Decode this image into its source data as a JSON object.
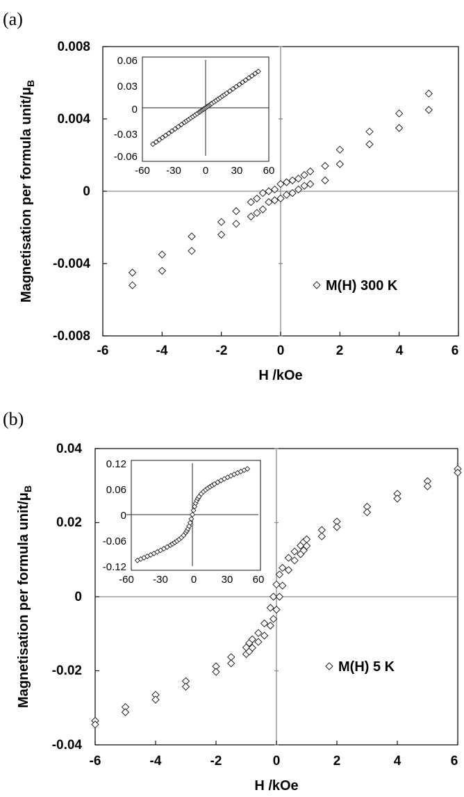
{
  "figure": {
    "panels": [
      {
        "label": "(a)"
      },
      {
        "label": "(b)"
      }
    ]
  },
  "chart_data": [
    {
      "type": "scatter",
      "panel": "(a)",
      "xlabel": "H /kOe",
      "ylabel": "Magnetisation per formula unit/",
      "ylabel_symbol": "μ",
      "ylabel_sub": "B",
      "xlim": [
        -6,
        6
      ],
      "ylim": [
        -0.008,
        0.008
      ],
      "xticks": [
        "-6",
        "-4",
        "-2",
        "0",
        "2",
        "4",
        "6"
      ],
      "yticks": [
        "-0.008",
        "-0.004",
        "0",
        "0.004",
        "0.008"
      ],
      "grid": false,
      "legend_position": "lower-right",
      "series": [
        {
          "name": "M(H) 300 K",
          "marker": "diamond",
          "x": [
            -5,
            -5,
            -4,
            -4,
            -3,
            -3,
            -2,
            -2,
            -1.5,
            -1.5,
            -1,
            -1,
            -0.8,
            -0.8,
            -0.6,
            -0.6,
            -0.4,
            -0.4,
            -0.2,
            -0.2,
            0,
            0,
            0.2,
            0.2,
            0.4,
            0.4,
            0.6,
            0.6,
            0.8,
            0.8,
            1,
            1,
            1.5,
            1.5,
            2,
            2,
            3,
            3,
            4,
            4,
            5,
            5
          ],
          "y": [
            -0.0045,
            -0.0052,
            -0.0035,
            -0.0044,
            -0.0025,
            -0.0033,
            -0.0017,
            -0.0024,
            -0.0011,
            -0.0018,
            -0.0006,
            -0.0014,
            -0.0004,
            -0.0012,
            -0.0001,
            -0.001,
            0.0,
            -0.0006,
            0.0001,
            -0.0005,
            0.0004,
            -0.0004,
            0.0005,
            -0.0002,
            0.0006,
            -0.0001,
            0.0007,
            0.0001,
            0.0009,
            0.0003,
            0.0011,
            0.0004,
            0.0014,
            0.0006,
            0.0023,
            0.0015,
            0.0033,
            0.0026,
            0.0043,
            0.0035,
            0.0054,
            0.0045
          ]
        }
      ],
      "inset": {
        "xlim": [
          -60,
          60
        ],
        "ylim": [
          -0.06,
          0.06
        ],
        "xticks": [
          "-60",
          "-30",
          "0",
          "30",
          "60"
        ],
        "yticks": [
          "-0.06",
          "-0.03",
          "0",
          "0.03",
          "0.06"
        ],
        "x": [
          -50,
          -47,
          -44,
          -41,
          -38,
          -35,
          -32,
          -29,
          -26,
          -23,
          -20,
          -18,
          -16,
          -14,
          -12,
          -10,
          -8,
          -6,
          -5,
          -4,
          -3,
          -2,
          -1,
          0,
          1,
          2,
          3,
          4,
          5,
          6,
          8,
          10,
          12,
          14,
          16,
          18,
          20,
          23,
          26,
          29,
          32,
          35,
          38,
          41,
          44,
          47,
          50
        ],
        "y": [
          -0.0455,
          -0.0428,
          -0.04,
          -0.0373,
          -0.0346,
          -0.0319,
          -0.0291,
          -0.0264,
          -0.0237,
          -0.0209,
          -0.0182,
          -0.0164,
          -0.0146,
          -0.0127,
          -0.0109,
          -0.0091,
          -0.0073,
          -0.0055,
          -0.0046,
          -0.0036,
          -0.0027,
          -0.0018,
          -0.0009,
          0.0,
          0.0009,
          0.0018,
          0.0027,
          0.0036,
          0.0046,
          0.0055,
          0.0073,
          0.0091,
          0.0109,
          0.0127,
          0.0146,
          0.0164,
          0.0182,
          0.0209,
          0.0237,
          0.0264,
          0.0291,
          0.0319,
          0.0346,
          0.0373,
          0.04,
          0.0428,
          0.0455
        ]
      }
    },
    {
      "type": "scatter",
      "panel": "(b)",
      "xlabel": "H /kOe",
      "ylabel": "Magnetisation per formula unit/",
      "ylabel_symbol": "μ",
      "ylabel_sub": "B",
      "xlim": [
        -6,
        6
      ],
      "ylim": [
        -0.04,
        0.04
      ],
      "xticks": [
        "-6",
        "-4",
        "-2",
        "0",
        "2",
        "4",
        "6"
      ],
      "yticks": [
        "-0.04",
        "-0.02",
        "0",
        "0.02",
        "0.04"
      ],
      "grid": false,
      "legend_position": "lower-right",
      "series": [
        {
          "name": "M(H) 5 K",
          "marker": "diamond",
          "x": [
            -6,
            -6,
            -5,
            -5,
            -4,
            -4,
            -3,
            -3,
            -2,
            -2,
            -1.5,
            -1.5,
            -1,
            -1,
            -0.9,
            -0.9,
            -0.8,
            -0.8,
            -0.6,
            -0.6,
            -0.4,
            -0.4,
            -0.2,
            -0.2,
            -0.1,
            -0.1,
            0,
            0,
            0.1,
            0.1,
            0.2,
            0.2,
            0.4,
            0.4,
            0.6,
            0.6,
            0.8,
            0.8,
            0.9,
            0.9,
            1,
            1,
            1.5,
            1.5,
            2,
            2,
            3,
            3,
            4,
            4,
            5,
            5,
            6,
            6
          ],
          "y": [
            -0.0335,
            -0.0345,
            -0.0298,
            -0.0312,
            -0.0265,
            -0.0278,
            -0.0228,
            -0.0243,
            -0.0188,
            -0.0203,
            -0.0163,
            -0.018,
            -0.0137,
            -0.0155,
            -0.0125,
            -0.0148,
            -0.0115,
            -0.0138,
            -0.0098,
            -0.0122,
            -0.0072,
            -0.0105,
            -0.003,
            -0.0078,
            -0.0,
            -0.006,
            0.0033,
            -0.0035,
            0.006,
            0.0,
            0.0078,
            0.003,
            0.0105,
            0.0072,
            0.0122,
            0.0098,
            0.0138,
            0.0115,
            0.0148,
            0.0125,
            0.0155,
            0.0137,
            0.018,
            0.0163,
            0.0203,
            0.0188,
            0.0243,
            0.0228,
            0.0278,
            0.0265,
            0.0312,
            0.0298,
            0.0345,
            0.0335
          ]
        }
      ],
      "inset": {
        "xlim": [
          -60,
          60
        ],
        "ylim": [
          -0.12,
          0.12
        ],
        "xticks": [
          "-60",
          "-30",
          "0",
          "30",
          "60"
        ],
        "yticks": [
          "-0.12",
          "-0.06",
          "0",
          "0.06",
          "0.12"
        ],
        "x": [
          -50,
          -47,
          -44,
          -41,
          -38,
          -35,
          -32,
          -29,
          -26,
          -23,
          -20,
          -18,
          -16,
          -14,
          -12,
          -10,
          -8,
          -6,
          -5,
          -4,
          -3,
          -2,
          -1,
          0,
          1,
          2,
          3,
          4,
          5,
          6,
          8,
          10,
          12,
          14,
          16,
          18,
          20,
          23,
          26,
          29,
          32,
          35,
          38,
          41,
          44,
          47,
          50
        ],
        "y": [
          -0.1067,
          -0.1036,
          -0.1004,
          -0.0972,
          -0.094,
          -0.0905,
          -0.087,
          -0.0833,
          -0.0795,
          -0.0755,
          -0.0712,
          -0.0682,
          -0.065,
          -0.0616,
          -0.0578,
          -0.0535,
          -0.0484,
          -0.0418,
          -0.0378,
          -0.0328,
          -0.0266,
          -0.0189,
          -0.0099,
          0.0,
          0.0099,
          0.0189,
          0.0266,
          0.0328,
          0.0378,
          0.0418,
          0.0484,
          0.0535,
          0.0578,
          0.0616,
          0.065,
          0.0682,
          0.0712,
          0.0755,
          0.0795,
          0.0833,
          0.087,
          0.0905,
          0.094,
          0.0972,
          0.1004,
          0.1036,
          0.1067
        ]
      }
    }
  ]
}
